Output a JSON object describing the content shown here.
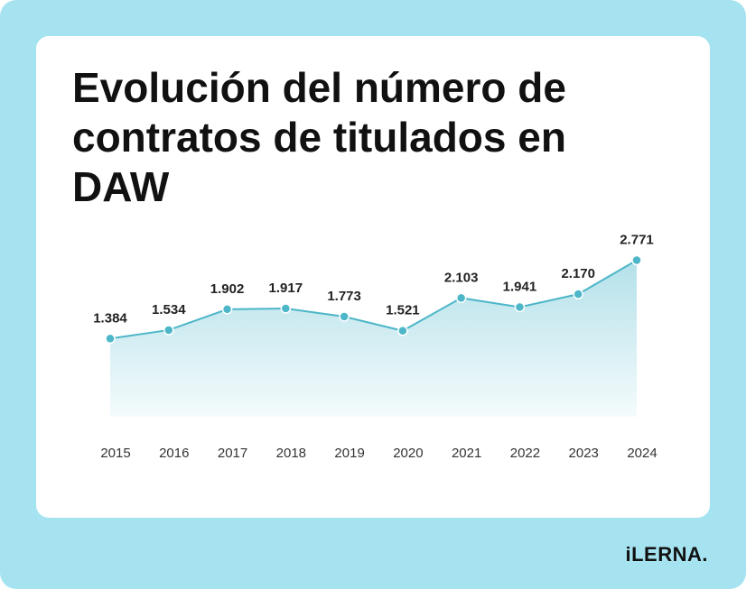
{
  "chart_data": {
    "type": "line",
    "title": "Evolución del número de contratos de titulados en DAW",
    "categories": [
      "2015",
      "2016",
      "2017",
      "2018",
      "2019",
      "2020",
      "2021",
      "2022",
      "2023",
      "2024"
    ],
    "values": [
      1384,
      1534,
      1902,
      1917,
      1773,
      1521,
      2103,
      1941,
      2170,
      2771
    ],
    "value_labels": [
      "1.384",
      "1.534",
      "1.902",
      "1.917",
      "1.773",
      "1.521",
      "2.103",
      "1.941",
      "2.170",
      "2.771"
    ],
    "color": "#4db6c8",
    "ylim": [
      0,
      2875
    ]
  },
  "logo": "iLERNA."
}
